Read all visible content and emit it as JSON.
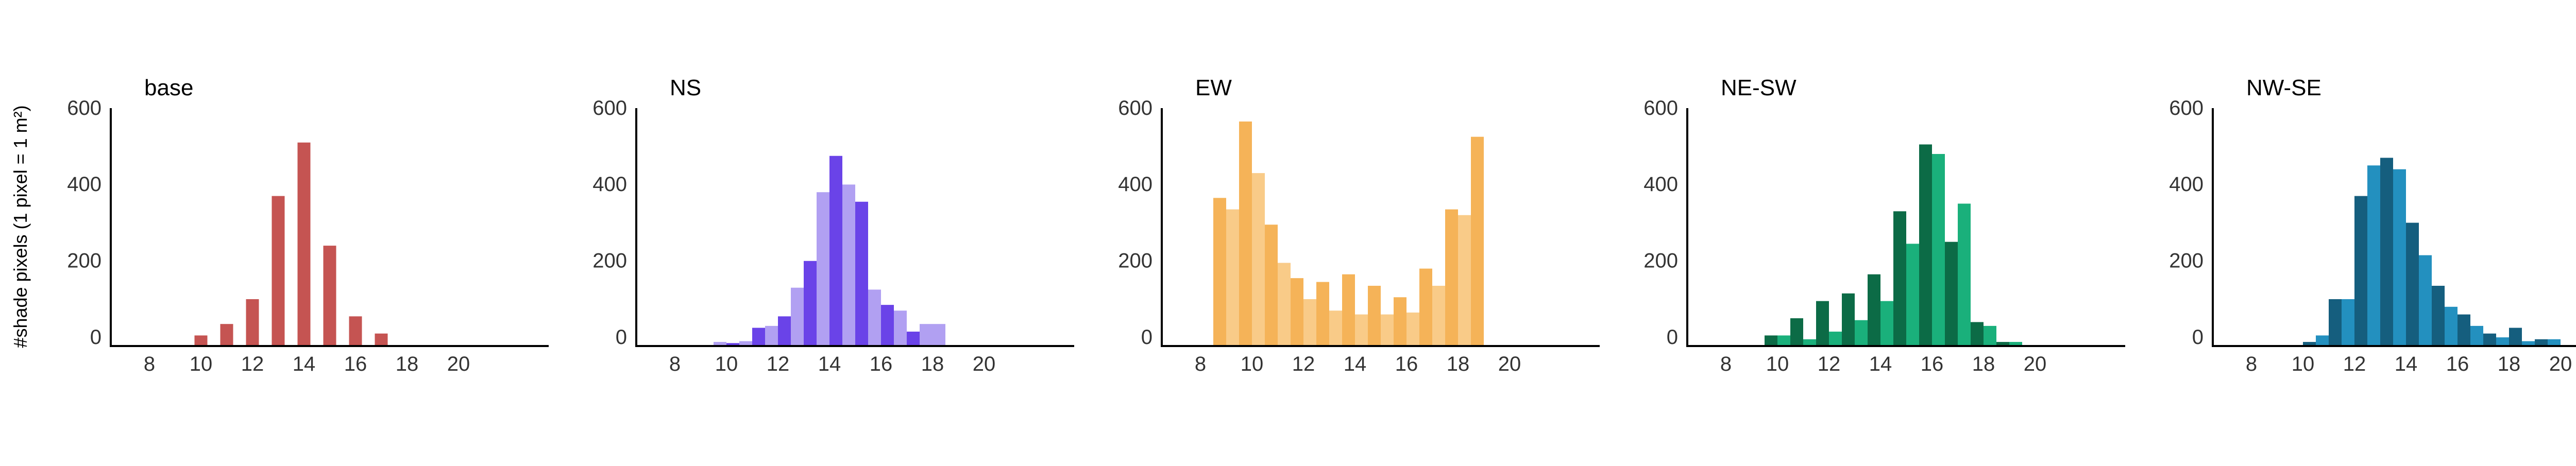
{
  "y_axis_label": "#shade pixels (1 pixel = 1 m²)",
  "chart_data": [
    {
      "type": "bar",
      "title": "base",
      "color": "#c55452",
      "xlim": [
        6.5,
        23
      ],
      "ylim": [
        0,
        620
      ],
      "xticks": [
        8,
        10,
        12,
        14,
        16,
        18,
        20
      ],
      "yticks": [
        0,
        200,
        400,
        600
      ],
      "series": [
        {
          "color": "#c55452",
          "x": [
            10,
            11,
            12,
            13,
            14,
            15,
            16,
            17
          ],
          "values": [
            25,
            55,
            120,
            390,
            530,
            260,
            75,
            30
          ]
        }
      ]
    },
    {
      "type": "bar",
      "title": "NS",
      "color": "#6a43e8",
      "xlim": [
        6.5,
        23
      ],
      "ylim": [
        0,
        620
      ],
      "xticks": [
        8,
        10,
        12,
        14,
        16,
        18,
        20
      ],
      "yticks": [
        0,
        200,
        400,
        600
      ],
      "series": [
        {
          "color": "#6a43e8",
          "x": [
            10.25,
            11.25,
            12.25,
            13.25,
            14.25,
            15.25,
            16.25,
            17.25
          ],
          "values": [
            5,
            45,
            75,
            220,
            495,
            375,
            105,
            35
          ]
        },
        {
          "color": "#b1a0f2",
          "x": [
            9.75,
            10.75,
            11.75,
            12.75,
            13.75,
            14.75,
            15.75,
            16.75,
            17.75,
            18.25
          ],
          "values": [
            8,
            10,
            50,
            150,
            400,
            420,
            145,
            90,
            55,
            55
          ]
        }
      ]
    },
    {
      "type": "bar",
      "title": "EW",
      "color": "#f5b358",
      "xlim": [
        6.5,
        23
      ],
      "ylim": [
        0,
        620
      ],
      "xticks": [
        8,
        10,
        12,
        14,
        16,
        18,
        20
      ],
      "yticks": [
        0,
        200,
        400,
        600
      ],
      "series": [
        {
          "color": "#f5b358",
          "x": [
            8.75,
            9.75,
            10.75,
            11.75,
            12.75,
            13.75,
            14.75,
            15.75,
            16.75,
            17.75,
            18.75
          ],
          "values": [
            385,
            585,
            315,
            175,
            165,
            185,
            155,
            125,
            200,
            355,
            545
          ]
        },
        {
          "color": "#f9cb88",
          "x": [
            9.25,
            10.25,
            11.25,
            12.25,
            13.25,
            14.25,
            15.25,
            16.25,
            17.25,
            18.25
          ],
          "values": [
            355,
            450,
            215,
            120,
            90,
            80,
            80,
            85,
            155,
            340
          ]
        }
      ]
    },
    {
      "type": "bar",
      "title": "NE-SW",
      "color": "#0c6b46",
      "xlim": [
        6.5,
        23
      ],
      "ylim": [
        0,
        620
      ],
      "xticks": [
        8,
        10,
        12,
        14,
        16,
        18,
        20
      ],
      "yticks": [
        0,
        200,
        400,
        600
      ],
      "series": [
        {
          "color": "#0c6b46",
          "x": [
            9.75,
            10.75,
            11.75,
            12.75,
            13.75,
            14.75,
            15.75,
            16.75,
            17.75,
            18.75
          ],
          "values": [
            25,
            70,
            115,
            135,
            185,
            350,
            525,
            270,
            60,
            8
          ]
        },
        {
          "color": "#1ab07b",
          "x": [
            10.25,
            11.25,
            12.25,
            13.25,
            14.25,
            15.25,
            16.25,
            17.25,
            18.25,
            19.25
          ],
          "values": [
            25,
            15,
            35,
            65,
            115,
            265,
            500,
            370,
            50,
            8
          ]
        }
      ]
    },
    {
      "type": "bar",
      "title": "NW-SE",
      "color": "#1f7ea8",
      "xlim": [
        6.5,
        23
      ],
      "ylim": [
        0,
        620
      ],
      "xticks": [
        8,
        10,
        12,
        14,
        16,
        18,
        20
      ],
      "yticks": [
        0,
        200,
        400,
        600
      ],
      "series": [
        {
          "color": "#155e7e",
          "x": [
            10.25,
            11.25,
            12.25,
            13.25,
            14.25,
            15.25,
            16.25,
            17.25,
            18.25,
            19.25
          ],
          "values": [
            8,
            120,
            390,
            490,
            320,
            155,
            80,
            30,
            45,
            15
          ]
        },
        {
          "color": "#2390bf",
          "x": [
            10.75,
            11.75,
            12.75,
            13.75,
            14.75,
            15.75,
            16.75,
            17.75,
            18.75,
            19.75
          ],
          "values": [
            25,
            120,
            470,
            460,
            235,
            100,
            50,
            20,
            10,
            15
          ]
        }
      ]
    }
  ]
}
